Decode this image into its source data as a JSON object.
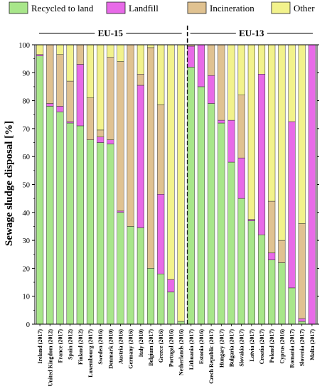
{
  "chart_data": {
    "type": "bar",
    "stacked": true,
    "ylabel": "Sewage sludge disposal [%]",
    "ylim": [
      0,
      100
    ],
    "yticks": [
      0,
      10,
      20,
      30,
      40,
      50,
      60,
      70,
      80,
      90,
      100
    ],
    "legend_position": "top",
    "groups": [
      {
        "label": "EU-15",
        "count": 15
      },
      {
        "label": "EU-13",
        "count": 13
      }
    ],
    "categories": [
      "Ireland (2017)",
      "United Kingdom (2012)",
      "France (2017)",
      "Spain (2012)",
      "Finland (2012)",
      "Luxembourg (2017)",
      "Sweden (2016)",
      "Denmark (2010)",
      "Austria (2016)",
      "Germany (2016)",
      "Italy (2010)",
      "Belgium (2017)",
      "Greece (2016)",
      "Portugal (2016)",
      "Netherlands (2016)",
      "Lithuania (2017)",
      "Estonia (2016)",
      "Czech Republic (2017)",
      "Hungary (2017)",
      "Bulgaria (2017)",
      "Slovakia (2017)",
      "Latvia (2017)",
      "Croatia (2017)",
      "Poland (2017)",
      "Cyprus (2016)",
      "Romania (2017)",
      "Slovenia (2017)",
      "Malta (2017)"
    ],
    "series": [
      {
        "name": "Recycled to land",
        "color": "#a8e68a",
        "values": [
          96,
          78,
          76,
          72,
          71,
          66,
          65,
          64.5,
          40,
          35,
          34.5,
          20,
          18,
          11.5,
          1,
          92,
          85,
          79,
          72,
          58,
          45,
          37,
          32,
          23,
          22,
          13,
          1,
          0
        ]
      },
      {
        "name": "Landfill",
        "color": "#e86ae8",
        "values": [
          0.5,
          1,
          2,
          0.5,
          22,
          0,
          2,
          1.5,
          0.5,
          0,
          51,
          0,
          28.5,
          4.5,
          0,
          7.5,
          15,
          10,
          1,
          15,
          14.5,
          0.5,
          57.5,
          2.5,
          0,
          59.5,
          1,
          100
        ]
      },
      {
        "name": "Incineration",
        "color": "#e0c291",
        "values": [
          0,
          21,
          18.5,
          14.5,
          7,
          15,
          2.5,
          29.5,
          53.5,
          65,
          4,
          79,
          32,
          0,
          0,
          0.5,
          0,
          11,
          27,
          0,
          22.5,
          0,
          0,
          18.5,
          8,
          0,
          34,
          0
        ]
      },
      {
        "name": "Other",
        "color": "#f2f28c",
        "values": [
          3.5,
          0,
          3.5,
          13,
          0,
          19,
          30.5,
          4.5,
          6,
          0,
          10.5,
          1,
          21.5,
          84,
          99,
          0,
          0,
          0,
          0,
          27,
          18,
          62.5,
          10.5,
          56,
          70,
          27.5,
          64,
          0
        ]
      }
    ]
  }
}
